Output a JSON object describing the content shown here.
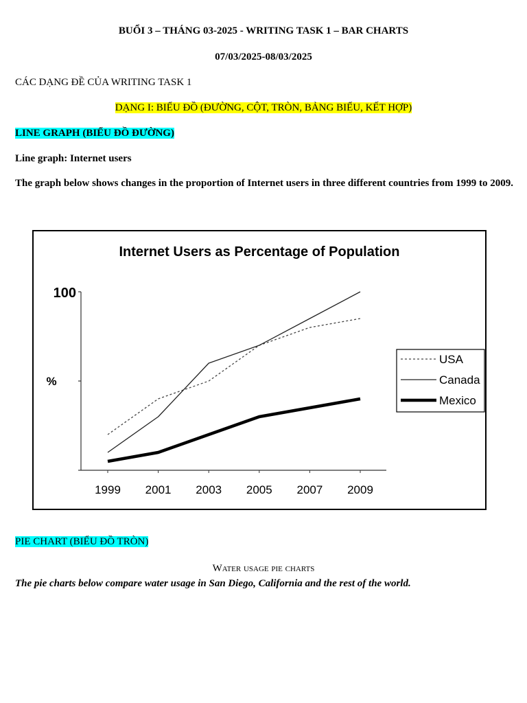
{
  "header": {
    "title": "BUỔI 3 – THÁNG 03-2025 - WRITING TASK 1 – BAR CHARTS",
    "dates": "07/03/2025-08/03/2025"
  },
  "intro": "CÁC DẠNG ĐỀ CỦA WRITING TASK 1",
  "type1_heading": "DẠNG I: BIỂU ĐỒ (ĐƯỜNG, CỘT, TRÒN, BẢNG BIỂU, KẾT HỢP)",
  "line_section": {
    "heading": "LINE GRAPH (BIỂU ĐỒ ĐƯỜNG)",
    "subheading": "Line graph: Internet users",
    "prompt": "The graph below shows changes in the proportion of Internet users in three different countries from 1999 to 2009."
  },
  "chart_data": {
    "type": "line",
    "title": "Internet Users as Percentage of Population",
    "xlabel": "",
    "ylabel": "%",
    "y_tick_label": "100",
    "ylim": [
      0,
      100
    ],
    "categories": [
      "1999",
      "2001",
      "2003",
      "2005",
      "2007",
      "2009"
    ],
    "series": [
      {
        "name": "USA",
        "style": "dotted",
        "values": [
          20,
          40,
          50,
          70,
          80,
          85
        ]
      },
      {
        "name": "Canada",
        "style": "thin",
        "values": [
          10,
          30,
          60,
          70,
          85,
          100
        ]
      },
      {
        "name": "Mexico",
        "style": "thick",
        "values": [
          5,
          10,
          20,
          30,
          35,
          40
        ]
      }
    ],
    "legend_position": "right"
  },
  "pie_section": {
    "heading": "PIE CHART (BIỂU ĐỒ TRÒN)",
    "caption": "Water usage pie charts",
    "prompt": "The pie charts below compare water usage in San Diego, California and the rest of the world."
  }
}
